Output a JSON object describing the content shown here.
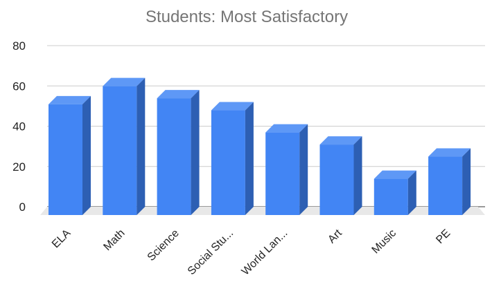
{
  "chart_data": {
    "type": "bar",
    "title": "Students: Most Satisfactory",
    "categories": [
      "ELA",
      "Math",
      "Science",
      "Social Stu...",
      "World Lan...",
      "Art",
      "Music",
      "PE"
    ],
    "series": [
      {
        "values": [
          55,
          64,
          58,
          52,
          41,
          35,
          18,
          29
        ]
      }
    ],
    "y_ticks": [
      "0",
      "20",
      "40",
      "60",
      "80"
    ],
    "ylim": [
      0,
      80
    ],
    "grid": true,
    "style": "3d-bar",
    "colors": {
      "bar_front": "#4285f4",
      "bar_top": "#5e98f6",
      "bar_side": "#2d5fb3",
      "grid": "#cccccc",
      "floor": "#e8e8e8",
      "title": "#757575"
    }
  }
}
